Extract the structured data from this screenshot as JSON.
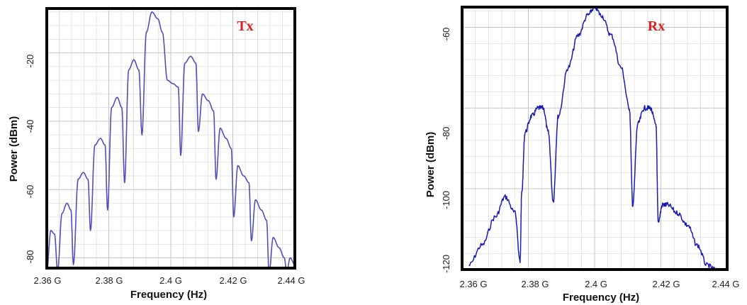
{
  "colors": {
    "tx_trace": "#5050b8",
    "rx_trace": "#1a1ab4",
    "panel_label": "#e02020"
  },
  "chart_data": [
    {
      "type": "line",
      "panel_label": "Tx",
      "xlabel": "Frequency (Hz)",
      "ylabel": "Power (dBm)",
      "xlim": [
        2.36,
        2.44
      ],
      "ylim": [
        -83,
        -7
      ],
      "x_ticks": [
        2.36,
        2.38,
        2.4,
        2.42,
        2.44
      ],
      "x_tick_labels": [
        "2.36 G",
        "2.38 G",
        "2.4 G",
        "2.42 G",
        "2.44 G"
      ],
      "y_ticks": [
        -20,
        -40,
        -60,
        -80
      ],
      "y_tick_labels": [
        "-20",
        "-40",
        "-60",
        "-80"
      ],
      "grid": true,
      "series": [
        {
          "x": [
            2.36,
            2.3613,
            2.3625,
            2.3635,
            2.3649,
            2.3665,
            2.3678,
            2.3686,
            2.3701,
            2.3718,
            2.3733,
            2.3741,
            2.3755,
            2.3773,
            2.3788,
            2.3796,
            2.3809,
            2.3827,
            2.3842,
            2.3851,
            2.3864,
            2.3881,
            2.3897,
            2.3907,
            2.3921,
            2.3939,
            2.3958,
            2.3973,
            2.3989,
            2.4007,
            2.4024,
            2.4032,
            2.4045,
            2.4064,
            2.4081,
            2.4089,
            2.4102,
            2.4121,
            2.4138,
            2.4146,
            2.4159,
            2.4178,
            2.4195,
            2.4203,
            2.4216,
            2.4235,
            2.4252,
            2.426,
            2.4273,
            2.4292,
            2.4309,
            2.4317,
            2.433,
            2.4349,
            2.4366,
            2.4374,
            2.4385,
            2.44
          ],
          "y": [
            -84,
            -72,
            -73,
            -84,
            -67,
            -64,
            -66,
            -82,
            -57,
            -55,
            -57,
            -72,
            -47,
            -45,
            -47,
            -66,
            -36,
            -33,
            -36,
            -58,
            -25,
            -22,
            -25,
            -44,
            -14,
            -8,
            -10,
            -14,
            -28,
            -29,
            -30,
            -50,
            -23,
            -21,
            -23,
            -43,
            -32,
            -34,
            -37,
            -57,
            -42,
            -45,
            -48,
            -68,
            -53,
            -56,
            -58,
            -75,
            -63,
            -66,
            -69,
            -85,
            -74,
            -77,
            -80,
            -84,
            -80,
            -82
          ]
        }
      ]
    },
    {
      "type": "line",
      "panel_label": "Rx",
      "xlabel": "Frequency (Hz)",
      "ylabel": "Power (dBm)",
      "xlim": [
        2.36,
        2.44
      ],
      "ylim": [
        -120,
        -55
      ],
      "x_ticks": [
        2.36,
        2.38,
        2.4,
        2.42,
        2.44
      ],
      "x_tick_labels": [
        "2.36 G",
        "2.38 G",
        "2.4 G",
        "2.42 G",
        "2.44 G"
      ],
      "y_ticks": [
        -60,
        -80,
        -100,
        -120
      ],
      "y_tick_labels": [
        "-60",
        "-80",
        "-100",
        "-120"
      ],
      "grid": true,
      "series": [
        {
          "x": [
            2.362,
            2.366,
            2.37,
            2.373,
            2.376,
            2.3775,
            2.378,
            2.379,
            2.381,
            2.383,
            2.3845,
            2.386,
            2.3875,
            2.389,
            2.392,
            2.395,
            2.398,
            2.4,
            2.402,
            2.405,
            2.408,
            2.4105,
            2.4115,
            2.413,
            2.415,
            2.4168,
            2.4185,
            2.4192,
            2.4205,
            2.422,
            2.425,
            2.428,
            2.431,
            2.434,
            2.4365
          ],
          "y": [
            -119,
            -114,
            -107,
            -102,
            -106,
            -118,
            -101,
            -86,
            -82,
            -80,
            -80,
            -86,
            -103,
            -82,
            -70,
            -62,
            -57,
            -55,
            -57,
            -62,
            -70,
            -80,
            -104,
            -84,
            -80,
            -80,
            -84,
            -108,
            -104,
            -104,
            -106,
            -109,
            -114,
            -119,
            -120
          ]
        }
      ]
    }
  ]
}
